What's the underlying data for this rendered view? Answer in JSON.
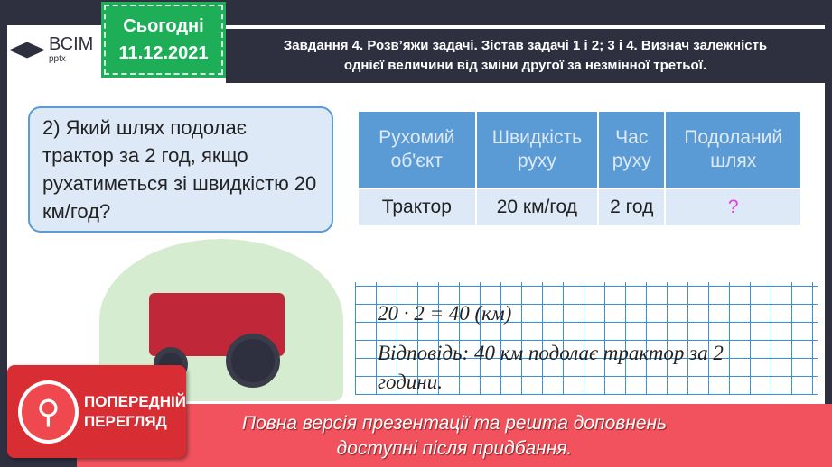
{
  "logo": {
    "text": "ВСІМ",
    "sub": "pptx"
  },
  "date_badge": {
    "label": "Сьогодні",
    "date": "11.12.2021"
  },
  "header": {
    "line1": "Завдання 4. Розв’яжи задачі. Зістав задачі 1 і 2; 3 і 4. Визнач залежність",
    "line2": "однієї величини від зміни другої за незмінної третьої."
  },
  "question": "2)  Який шлях подолає трактор за 2 год, якщо рухатиметься зі швидкістю 20 км/год?",
  "table": {
    "headers": [
      "Рухомий об'єкт",
      "Швидкість руху",
      "Час руху",
      "Подоланий шлях"
    ],
    "row": [
      "Трактор",
      "20 км/год",
      "2 год",
      "?"
    ]
  },
  "solution": {
    "equation": "20 · 2 = 40 (км)",
    "answer_line1": "Відповідь: 40 км подолає трактор за 2",
    "answer_line2": "години."
  },
  "preview": {
    "line1": "ПОПЕРЕДНІЙ",
    "line2": "ПЕРЕГЛЯД"
  },
  "banner": {
    "line1": "Повна версія презентації та решта доповнень",
    "line2": "доступні після придбання."
  },
  "colors": {
    "accent_green": "#1fae58",
    "table_blue": "#5b9bd5",
    "banner_red": "#f2525e",
    "question_mark": "#e040e0"
  }
}
